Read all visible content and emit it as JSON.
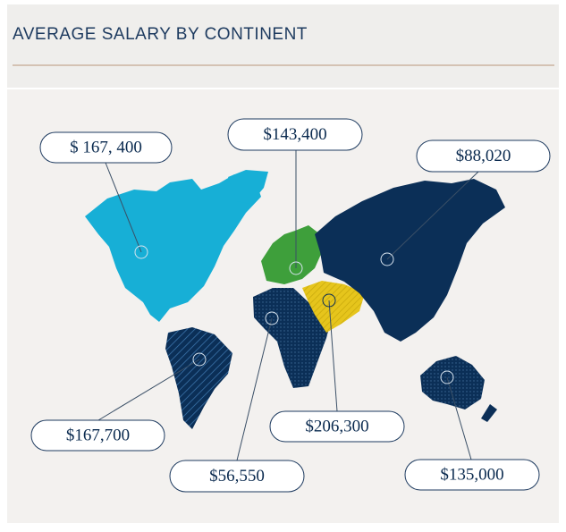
{
  "header": {
    "title": "AVERAGE SALARY BY CONTINENT"
  },
  "callouts": [
    {
      "label": "$ 167, 400"
    },
    {
      "label": "$143,400"
    },
    {
      "label": "$88,020"
    },
    {
      "label": "$167,700"
    },
    {
      "label": "$206,300"
    },
    {
      "label": "$56,550"
    },
    {
      "label": "$135,000"
    }
  ]
}
